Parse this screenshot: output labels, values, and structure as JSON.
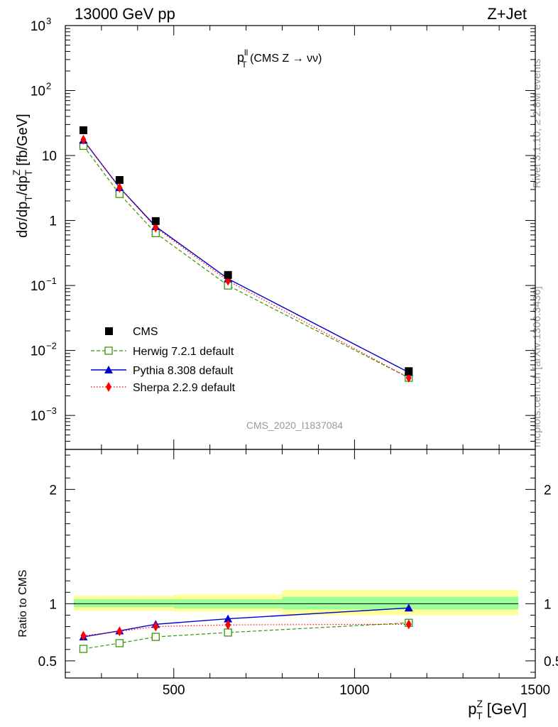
{
  "header": {
    "left": "13000 GeV pp",
    "right": "Z+Jet"
  },
  "plot_title": {
    "main": "p",
    "sup": "ll",
    "sub": "T",
    "rest": " (CMS Z → νν)"
  },
  "watermark": "CMS_2020_I1837084",
  "side_labels": {
    "rivet": "Rivet 3.1.10, ≥ 2.8M events",
    "mcplots": "mcplots.cern.ch [arXiv:1306.3436]"
  },
  "y_label_top": {
    "a": "dσ/dp",
    "a_sub": "T",
    "b": "/dp",
    "b_sub": "T",
    "b_sup": "Z",
    "c": " [fb/GeV]"
  },
  "y_label_bottom": "Ratio to CMS",
  "x_label": {
    "main": "p",
    "sub": "T",
    "sup": "Z",
    "rest": " [GeV]"
  },
  "legend": {
    "cms": "CMS",
    "herwig": "Herwig 7.2.1 default",
    "pythia": "Pythia 8.308 default",
    "sherpa": "Sherpa 2.2.9 default"
  },
  "colors": {
    "herwig": "#339900",
    "pythia": "#0000cc",
    "sherpa": "#ff0000",
    "band_inner": "#99ff99",
    "band_outer": "#ffff99"
  },
  "chart_data": {
    "type": "line",
    "x_log": false,
    "y_log_top": true,
    "xlim": [
      200,
      1500
    ],
    "ylim_top": [
      0.0003,
      1000
    ],
    "ylim_ratio": [
      0.35,
      2.35
    ],
    "x_ticks": [
      {
        "v": 500,
        "label": "500"
      },
      {
        "v": 1000,
        "label": "1000"
      },
      {
        "v": 1500,
        "label": "1500"
      }
    ],
    "y_ticks_top": [
      {
        "e": -3,
        "label": "10",
        "sup": "−3"
      },
      {
        "e": -2,
        "label": "10",
        "sup": "−2"
      },
      {
        "e": -1,
        "label": "10",
        "sup": "−1"
      },
      {
        "e": 0,
        "label": "1",
        "sup": ""
      },
      {
        "e": 1,
        "label": "10",
        "sup": ""
      },
      {
        "e": 2,
        "label": "10",
        "sup": "2"
      },
      {
        "e": 3,
        "label": "10",
        "sup": "3"
      }
    ],
    "y_ticks_ratio": [
      {
        "v": 0.5,
        "label": "0.5"
      },
      {
        "v": 1,
        "label": "1"
      },
      {
        "v": 2,
        "label": "2"
      }
    ],
    "bins": [
      [
        200,
        300
      ],
      [
        300,
        400
      ],
      [
        400,
        500
      ],
      [
        500,
        800
      ],
      [
        800,
        1500
      ]
    ],
    "x": [
      250,
      350,
      450,
      650,
      1150
    ],
    "series": [
      {
        "name": "CMS",
        "key": "cms",
        "values": [
          24.5,
          4.2,
          0.98,
          0.145,
          0.0048
        ]
      },
      {
        "name": "Herwig 7.2.1 default",
        "key": "herwig",
        "values": [
          14.1,
          2.56,
          0.64,
          0.1,
          0.0038
        ]
      },
      {
        "name": "Pythia 8.308 default",
        "key": "pythia",
        "values": [
          17.2,
          3.22,
          0.81,
          0.127,
          0.0046
        ]
      },
      {
        "name": "Sherpa 2.2.9 default",
        "key": "sherpa",
        "values": [
          17.5,
          3.19,
          0.78,
          0.118,
          0.0038
        ]
      }
    ],
    "ratio_series": [
      {
        "key": "herwig",
        "values": [
          0.605,
          0.655,
          0.71,
          0.748,
          0.833
        ]
      },
      {
        "key": "pythia",
        "values": [
          0.71,
          0.763,
          0.82,
          0.868,
          0.963
        ]
      },
      {
        "key": "sherpa",
        "values": [
          0.72,
          0.758,
          0.8,
          0.815,
          0.82
        ]
      }
    ],
    "ratio_band": [
      {
        "inner": [
          0.97,
          1.04
        ],
        "outer": [
          0.94,
          1.07
        ]
      },
      {
        "inner": [
          0.97,
          1.04
        ],
        "outer": [
          0.94,
          1.07
        ]
      },
      {
        "inner": [
          0.97,
          1.04
        ],
        "outer": [
          0.94,
          1.07
        ]
      },
      {
        "inner": [
          0.96,
          1.04
        ],
        "outer": [
          0.93,
          1.08
        ]
      },
      {
        "inner": [
          0.95,
          1.06
        ],
        "outer": [
          0.9,
          1.12
        ]
      }
    ]
  }
}
